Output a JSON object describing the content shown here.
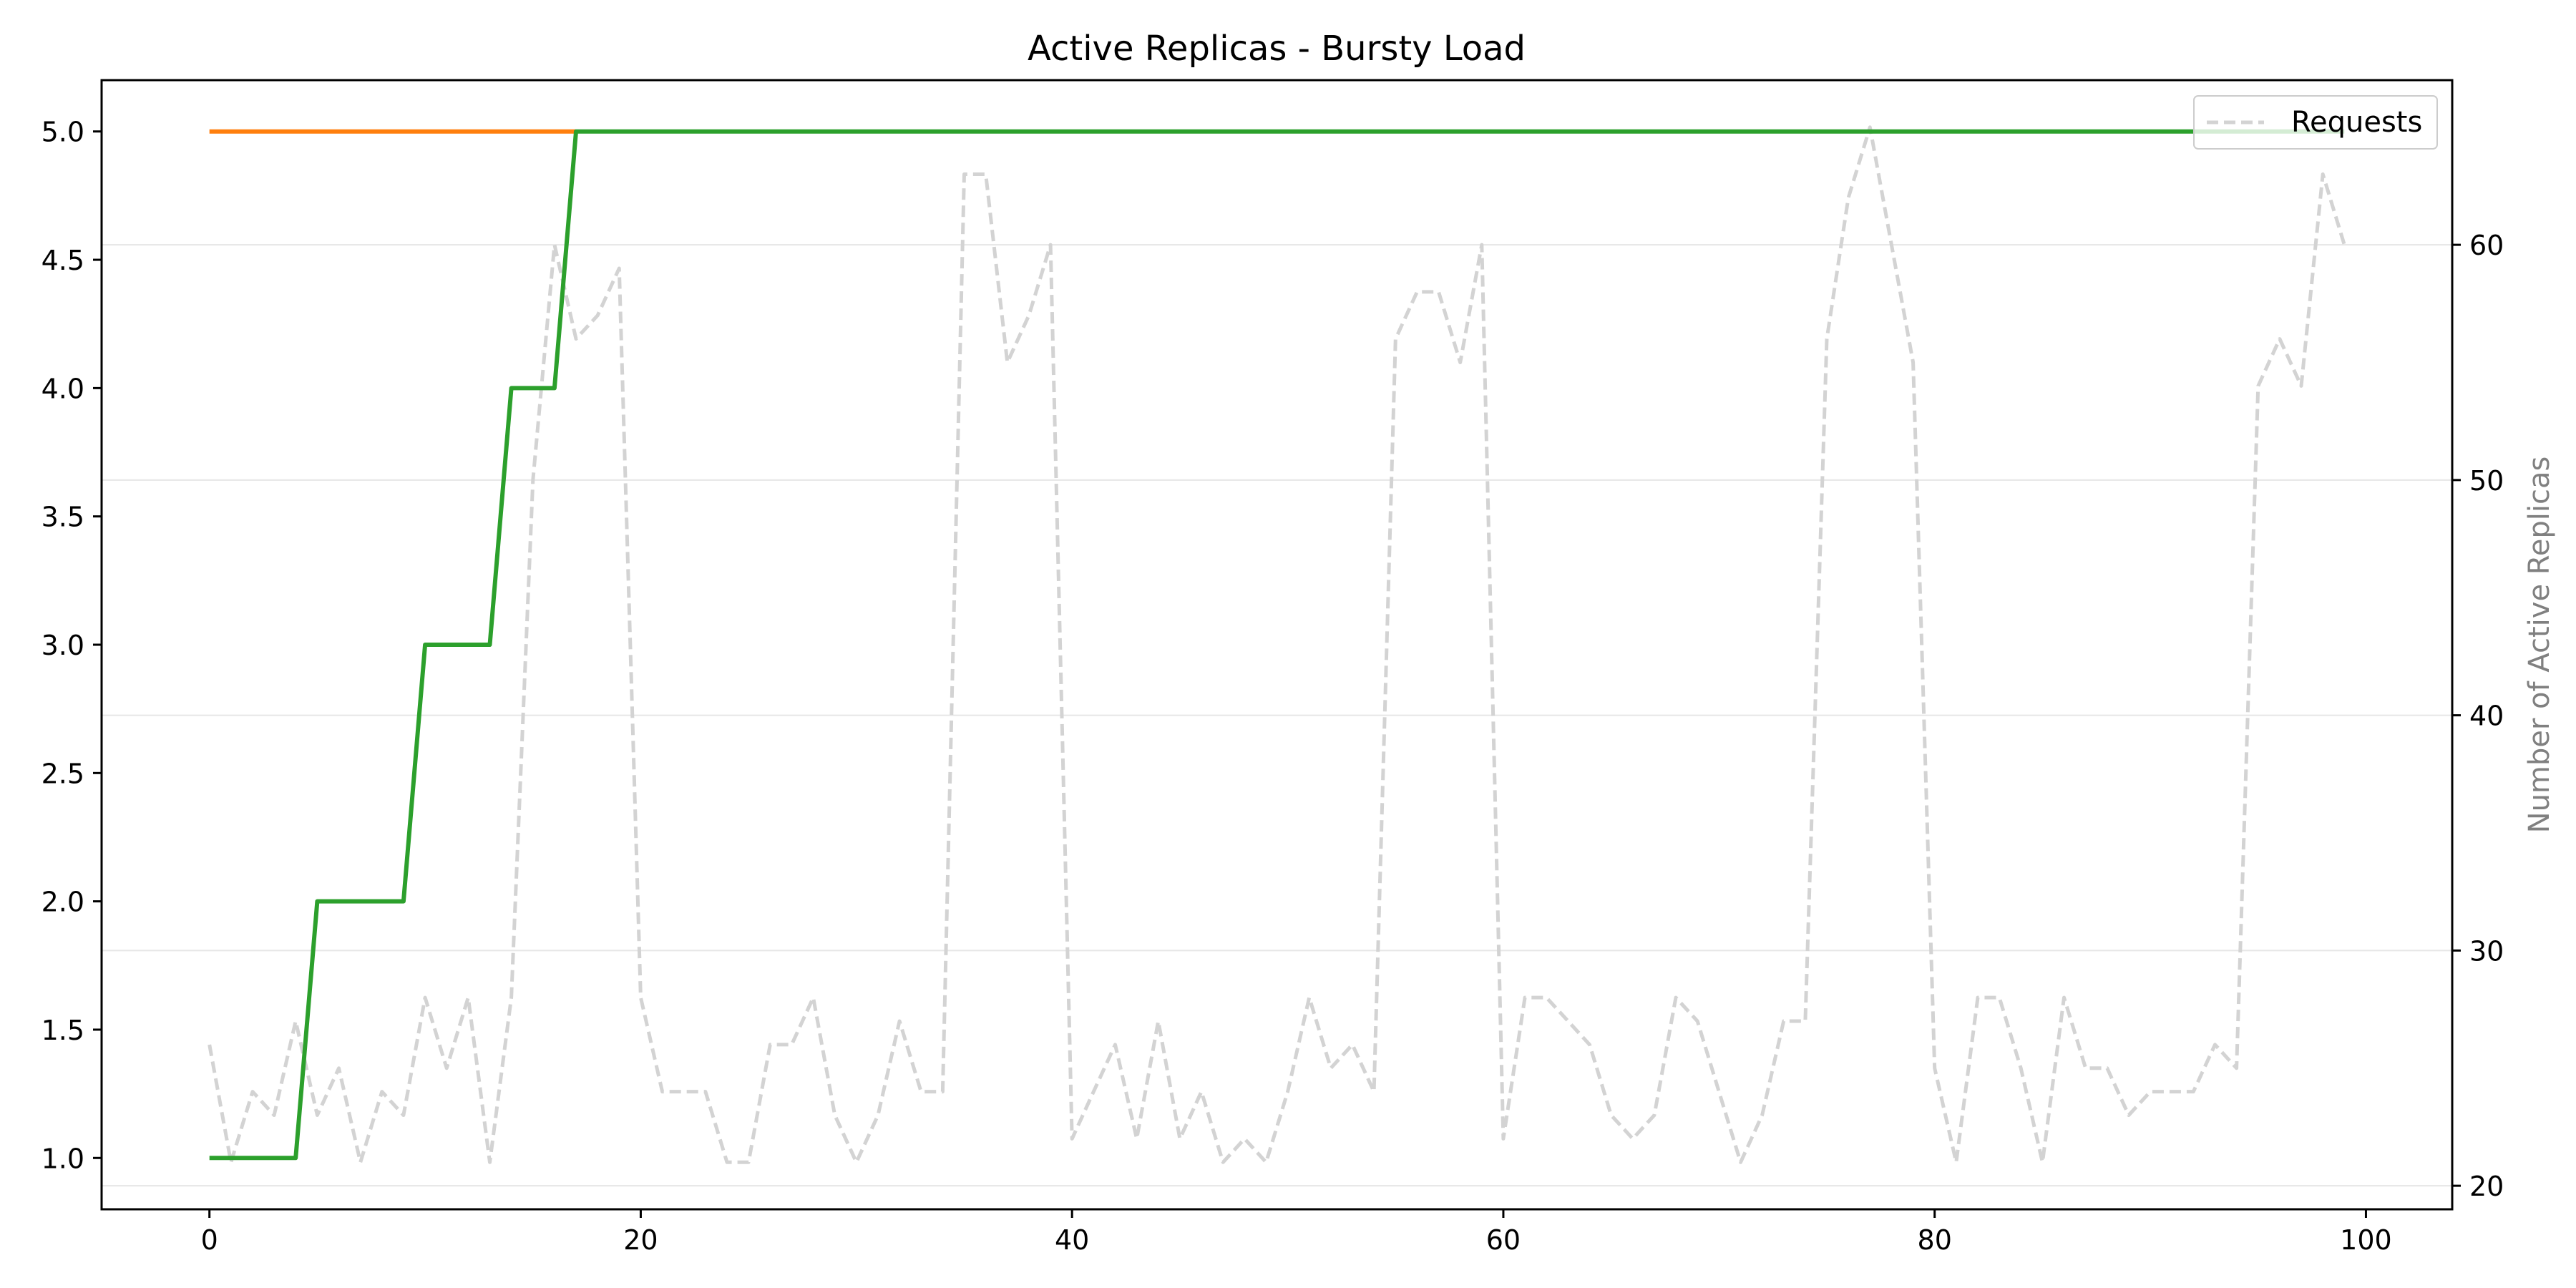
{
  "chart_data": {
    "type": "line",
    "title": "Active Replicas - Bursty Load",
    "xlabel": "",
    "ylabel": "",
    "ylabel_right": "Number of Active Replicas",
    "xlim": [
      -5,
      104
    ],
    "ylim": [
      0.8,
      5.2
    ],
    "ylim_right": [
      19,
      67
    ],
    "x_ticks": [
      0,
      20,
      40,
      60,
      80,
      100
    ],
    "y_ticks": [
      1.0,
      1.5,
      2.0,
      2.5,
      3.0,
      3.5,
      4.0,
      4.5,
      5.0
    ],
    "y_ticks_right": [
      20,
      30,
      40,
      50,
      60
    ],
    "x_tick_labels": [
      "0",
      "20",
      "40",
      "60",
      "80",
      "100"
    ],
    "y_tick_labels": [
      "1.0",
      "1.5",
      "2.0",
      "2.5",
      "3.0",
      "3.5",
      "4.0",
      "4.5",
      "5.0"
    ],
    "y_tick_labels_right": [
      "20",
      "30",
      "40",
      "50",
      "60"
    ],
    "grid": "horizontal (right axis)",
    "legend": {
      "placement": "top-right",
      "entries": [
        "Requests"
      ]
    },
    "series": [
      {
        "name": "",
        "axis": "left",
        "color": "#ff7f0e",
        "style": "solid",
        "x": [
          0,
          17
        ],
        "values": [
          5,
          5
        ]
      },
      {
        "name": "",
        "axis": "left",
        "color": "#2ca02c",
        "style": "solid",
        "x": [
          0,
          4,
          5,
          9,
          10,
          13,
          14,
          16,
          17,
          99
        ],
        "values": [
          1,
          1,
          2,
          2,
          3,
          3,
          4,
          4,
          5,
          5
        ]
      },
      {
        "name": "Requests",
        "axis": "right",
        "color": "#d3d3d3",
        "style": "dashed",
        "x": [
          0,
          1,
          2,
          3,
          4,
          5,
          6,
          7,
          8,
          9,
          10,
          11,
          12,
          13,
          14,
          15,
          16,
          17,
          18,
          19,
          20,
          21,
          22,
          23,
          24,
          25,
          26,
          27,
          28,
          29,
          30,
          31,
          32,
          33,
          34,
          35,
          36,
          37,
          38,
          39,
          40,
          41,
          42,
          43,
          44,
          45,
          46,
          47,
          48,
          49,
          50,
          51,
          52,
          53,
          54,
          55,
          56,
          57,
          58,
          59,
          60,
          61,
          62,
          63,
          64,
          65,
          66,
          67,
          68,
          69,
          70,
          71,
          72,
          73,
          74,
          75,
          76,
          77,
          78,
          79,
          80,
          81,
          82,
          83,
          84,
          85,
          86,
          87,
          88,
          89,
          90,
          91,
          92,
          93,
          94,
          95,
          96,
          97,
          98,
          99
        ],
        "values": [
          26,
          21,
          24,
          23,
          27,
          23,
          25,
          21,
          24,
          23,
          28,
          25,
          28,
          21,
          28,
          50,
          60,
          56,
          57,
          59,
          28,
          24,
          24,
          24,
          21,
          21,
          26,
          26,
          28,
          23,
          21,
          23,
          27,
          24,
          24,
          63,
          63,
          55,
          57,
          60,
          22,
          24,
          26,
          22,
          27,
          22,
          24,
          21,
          22,
          21,
          24,
          28,
          25,
          26,
          24,
          56,
          58,
          58,
          55,
          60,
          22,
          28,
          28,
          27,
          26,
          23,
          22,
          23,
          28,
          27,
          24,
          21,
          23,
          27,
          27,
          56,
          62,
          65,
          60,
          55,
          25,
          21,
          28,
          28,
          25,
          21,
          28,
          25,
          25,
          23,
          24,
          24,
          24,
          26,
          25,
          54,
          56,
          54,
          63,
          60
        ]
      }
    ]
  }
}
